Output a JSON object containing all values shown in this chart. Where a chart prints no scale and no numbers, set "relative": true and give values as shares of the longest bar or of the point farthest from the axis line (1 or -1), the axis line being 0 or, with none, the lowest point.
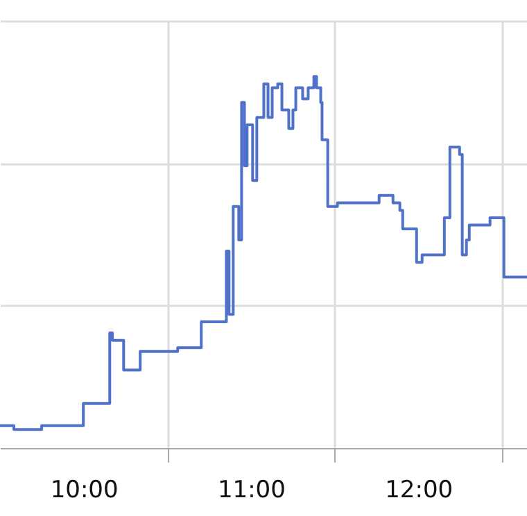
{
  "chart_data": {
    "type": "step",
    "relative": true,
    "grid": true,
    "xlim": [
      9.5,
      12.65
    ],
    "xticks": [
      {
        "value": 10,
        "label": "10:00"
      },
      {
        "value": 10.5,
        "label": null
      },
      {
        "value": 11,
        "label": "11:00"
      },
      {
        "value": 11.5,
        "label": null
      },
      {
        "value": 12,
        "label": "12:00"
      },
      {
        "value": 12.5,
        "label": null
      }
    ],
    "tick_labels": "x",
    "x": [
      9.5,
      9.583,
      9.749,
      9.998,
      10.156,
      10.172,
      10.239,
      10.338,
      10.562,
      10.703,
      10.853,
      10.869,
      10.894,
      10.927,
      10.944,
      10.961,
      10.977,
      11.01,
      11.035,
      11.077,
      11.102,
      11.127,
      11.16,
      11.185,
      11.226,
      11.251,
      11.268,
      11.309,
      11.342,
      11.376,
      11.392,
      11.417,
      11.425,
      11.459,
      11.517,
      11.766,
      11.849,
      11.89,
      11.907,
      11.99,
      12.023,
      12.156,
      12.189,
      12.247,
      12.263,
      12.288,
      12.305,
      12.429,
      12.512,
      12.65
    ],
    "series": [
      {
        "color": "#4f72c8",
        "values": [
          0.06,
          0.05,
          0.06,
          0.12,
          0.31,
          0.29,
          0.21,
          0.26,
          0.27,
          0.34,
          0.53,
          0.36,
          0.65,
          0.56,
          0.93,
          0.76,
          0.87,
          0.72,
          0.89,
          0.98,
          0.89,
          0.97,
          0.98,
          0.91,
          0.86,
          0.91,
          0.97,
          0.94,
          0.97,
          1.0,
          0.97,
          0.93,
          0.83,
          0.65,
          0.66,
          0.68,
          0.66,
          0.64,
          0.59,
          0.5,
          0.52,
          0.62,
          0.81,
          0.79,
          0.52,
          0.56,
          0.6,
          0.62,
          0.46,
          0.46
        ]
      }
    ]
  }
}
